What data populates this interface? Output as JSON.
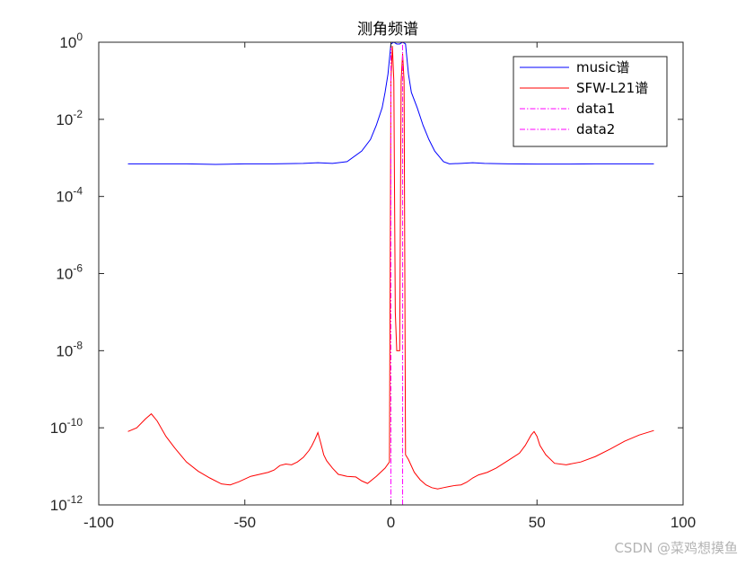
{
  "chart_data": {
    "type": "line",
    "title": "测角频谱",
    "xlabel": "",
    "ylabel": "",
    "xlim": [
      -100,
      100
    ],
    "ylim": [
      1e-12,
      1
    ],
    "y_scale": "log",
    "grid": false,
    "legend_position": "top-right",
    "x_ticks": [
      "-100",
      "-50",
      "0",
      "50",
      "100"
    ],
    "y_ticks": [
      {
        "base": "10",
        "exp": "0"
      },
      {
        "base": "10",
        "exp": "-2"
      },
      {
        "base": "10",
        "exp": "-4"
      },
      {
        "base": "10",
        "exp": "-6"
      },
      {
        "base": "10",
        "exp": "-8"
      },
      {
        "base": "10",
        "exp": "-10"
      },
      {
        "base": "10",
        "exp": "-12"
      }
    ],
    "series": [
      {
        "name": "music谱",
        "color": "#0000ff",
        "style": "solid",
        "x": [
          -90,
          -80,
          -70,
          -60,
          -50,
          -40,
          -30,
          -25,
          -20,
          -15,
          -10,
          -7,
          -5,
          -3,
          -2,
          -1,
          0,
          1,
          2,
          3,
          4,
          5,
          6,
          7,
          9,
          11,
          13,
          15,
          18,
          20,
          24,
          28,
          32,
          40,
          50,
          60,
          70,
          80,
          90
        ],
        "y": [
          0.0007,
          0.0007,
          0.0007,
          0.00068,
          0.0007,
          0.0007,
          0.00072,
          0.00075,
          0.00072,
          0.0008,
          0.0015,
          0.003,
          0.007,
          0.02,
          0.05,
          0.15,
          0.9,
          1.0,
          0.9,
          0.9,
          1.0,
          0.9,
          0.15,
          0.05,
          0.02,
          0.007,
          0.003,
          0.0015,
          0.0008,
          0.0007,
          0.00072,
          0.00075,
          0.00072,
          0.0007,
          0.00069,
          0.00069,
          0.0007,
          0.0007,
          0.0007
        ]
      },
      {
        "name": "SFW-L21谱",
        "color": "#ff0000",
        "style": "solid",
        "x": [
          -90,
          -87,
          -84,
          -82,
          -80,
          -77,
          -74,
          -70,
          -66,
          -62,
          -58,
          -55,
          -52,
          -48,
          -45,
          -42,
          -40,
          -38,
          -36,
          -34,
          -32,
          -30,
          -28,
          -27,
          -26,
          -25,
          -24,
          -23,
          -22,
          -20,
          -18,
          -15,
          -12,
          -10,
          -8,
          -5,
          -2,
          -0.5,
          0,
          0.5,
          1,
          1.5,
          2,
          3,
          3.5,
          4,
          4.5,
          5,
          6,
          8,
          10,
          12,
          14,
          16,
          18,
          20,
          22,
          24,
          26,
          28,
          30,
          33,
          36,
          40,
          44,
          46,
          48,
          49,
          50,
          51,
          53,
          56,
          60,
          65,
          70,
          75,
          80,
          85,
          90
        ],
        "y": [
          8e-11,
          1e-10,
          1.7e-10,
          2.3e-10,
          1.5e-10,
          6e-11,
          3e-11,
          1.3e-11,
          7.5e-12,
          5e-12,
          3.5e-12,
          3.3e-12,
          4e-12,
          5.5e-12,
          6.2e-12,
          7e-12,
          8e-12,
          1.05e-11,
          1.15e-11,
          1.1e-11,
          1.3e-11,
          1.7e-11,
          2.6e-11,
          3.5e-11,
          5e-11,
          7.5e-11,
          4e-11,
          2e-11,
          1.4e-11,
          9e-12,
          6.2e-12,
          5.5e-12,
          5.3e-12,
          4.2e-12,
          3.6e-12,
          5.5e-12,
          9e-12,
          1.3e-11,
          0.1,
          0.8,
          0.1,
          1e-07,
          1e-08,
          1e-08,
          0.1,
          0.5,
          0.1,
          2e-11,
          1.5e-11,
          7e-12,
          4.5e-12,
          3.3e-12,
          2.8e-12,
          2.6e-12,
          2.8e-12,
          3e-12,
          3.2e-12,
          3.3e-12,
          3.9e-12,
          5e-12,
          6e-12,
          7e-12,
          9e-12,
          1.4e-11,
          2.2e-11,
          3.5e-11,
          6.5e-11,
          8e-11,
          6e-11,
          3.5e-11,
          2e-11,
          1.2e-11,
          1.1e-11,
          1.3e-11,
          1.8e-11,
          2.8e-11,
          4.5e-11,
          6.5e-11,
          8.5e-11
        ]
      },
      {
        "name": "data1",
        "color": "#ff00ff",
        "style": "dashdot",
        "x": [
          0,
          0
        ],
        "y": [
          1e-12,
          1
        ]
      },
      {
        "name": "data2",
        "color": "#ff00ff",
        "style": "dashdot",
        "x": [
          4,
          4
        ],
        "y": [
          1e-12,
          1
        ]
      }
    ]
  },
  "watermark": "CSDN @菜鸡想摸鱼"
}
